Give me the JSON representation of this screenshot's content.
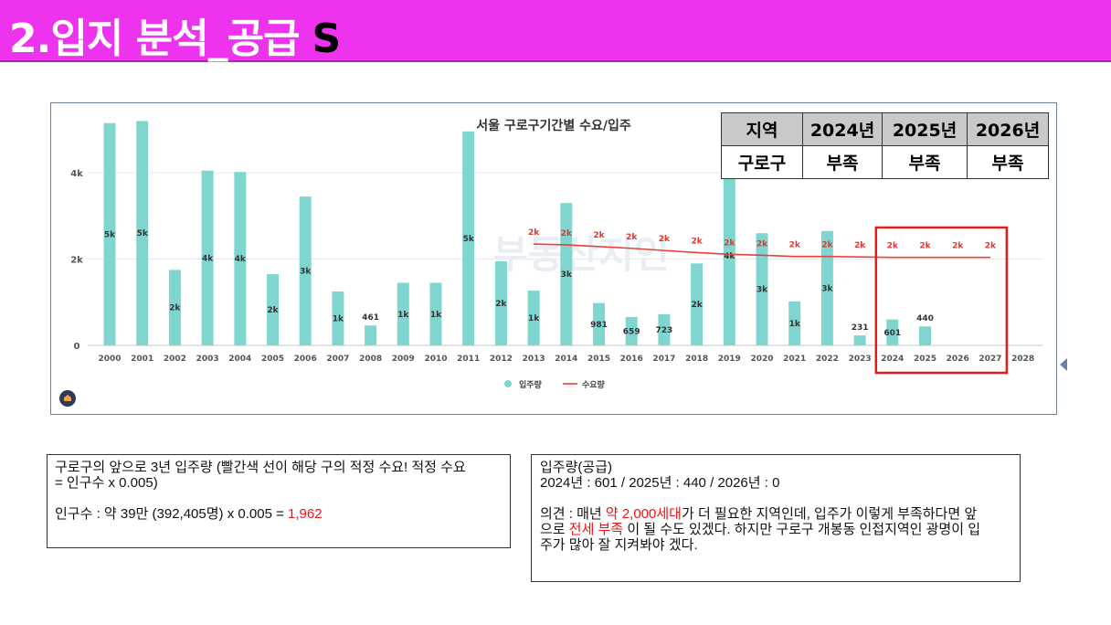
{
  "header": {
    "title": "2.입지 분석_공급",
    "suffix": "S"
  },
  "chart_data": {
    "type": "bar",
    "title": "서울 구로구기간별 수요/입주",
    "x_axis_years": [
      "2000",
      "2001",
      "2002",
      "2003",
      "2004",
      "2005",
      "2006",
      "2007",
      "2008",
      "2009",
      "2010",
      "2011",
      "2012",
      "2013",
      "2014",
      "2015",
      "2016",
      "2017",
      "2018",
      "2019",
      "2020",
      "2021",
      "2022",
      "2023",
      "2024",
      "2025",
      "2026",
      "2027",
      "2028"
    ],
    "y_ticks": [
      "0",
      "2k",
      "4k"
    ],
    "ylim": [
      0,
      5400
    ],
    "series": [
      {
        "name": "입주량",
        "type": "bar",
        "color": "#7fd6cf",
        "x": [
          "2000",
          "2001",
          "2002",
          "2003",
          "2004",
          "2005",
          "2006",
          "2007",
          "2008",
          "2009",
          "2010",
          "2011",
          "2012",
          "2013",
          "2014",
          "2015",
          "2016",
          "2017",
          "2018",
          "2019",
          "2020",
          "2021",
          "2022",
          "2023",
          "2024",
          "2025"
        ],
        "values": [
          5150,
          5200,
          1750,
          4050,
          4020,
          1650,
          3450,
          1250,
          461,
          1450,
          1450,
          4960,
          1950,
          1270,
          3300,
          981,
          659,
          723,
          1900,
          4150,
          2600,
          1020,
          2650,
          231,
          601,
          440
        ],
        "labels": [
          "5k",
          "5k",
          "2k",
          "4k",
          "4k",
          "2k",
          "3k",
          "1k",
          "461",
          "1k",
          "1k",
          "5k",
          "2k",
          "1k",
          "3k",
          "981",
          "659",
          "723",
          "2k",
          "4k",
          "3k",
          "1k",
          "3k",
          "231",
          "601",
          "440"
        ]
      },
      {
        "name": "수요량",
        "type": "line",
        "color": "#e8403a",
        "x": [
          "2013",
          "2014",
          "2015",
          "2016",
          "2017",
          "2018",
          "2019",
          "2020",
          "2021",
          "2022",
          "2023",
          "2024",
          "2025",
          "2026",
          "2027"
        ],
        "values": [
          2350,
          2330,
          2290,
          2250,
          2200,
          2150,
          2110,
          2090,
          2060,
          2060,
          2050,
          2040,
          2040,
          2040,
          2040
        ],
        "labels": [
          "2k",
          "2k",
          "2k",
          "2k",
          "2k",
          "2k",
          "2k",
          "2k",
          "2k",
          "2k",
          "2k",
          "2k",
          "2k",
          "2k",
          "2k"
        ]
      }
    ],
    "legend": {
      "items": [
        "입주량",
        "수요량"
      ],
      "placement": "bottom"
    },
    "watermark": "부동산지인",
    "highlight": {
      "from": "2024",
      "to": "2027",
      "color": "#e31b1b"
    }
  },
  "summary_table": {
    "header": [
      "지역",
      "2024년",
      "2025년",
      "2026년"
    ],
    "row": [
      "구로구",
      "부족",
      "부족",
      "부족"
    ]
  },
  "note_left": {
    "line1": "구로구의 앞으로 3년 입주량 (빨간색 선이 해당 구의 적정 수요! 적정 수요",
    "line2": "= 인구수 x 0.005)",
    "line3_prefix": "인구수 : 약 39만 (392,405명) x 0.005 = ",
    "line3_value": "1,962"
  },
  "note_right": {
    "title": "입주량(공급)",
    "values_line": "2024년 : 601  /  2025년 : 440  /  2026년 : 0",
    "opinion_prefix": "의견 : 매년 ",
    "opinion_red1": "약 2,000세대",
    "opinion_mid1": "가 더 필요한 지역인데,  입주가 이렇게 부족하다면 앞",
    "opinion_mid2": "으로 ",
    "opinion_red2": "전세 부족",
    "opinion_end": " 이 될 수도 있겠다. 하지만 구로구 개봉동 인접지역인 광명이 입",
    "opinion_last": "주가 많아 잘 지켜봐야 겠다."
  },
  "colors": {
    "header_bg": "#ee33ee",
    "bar": "#7fd6cf",
    "demand_line": "#e8403a",
    "highlight": "#e31b1b",
    "note_red": "#ee1111"
  }
}
